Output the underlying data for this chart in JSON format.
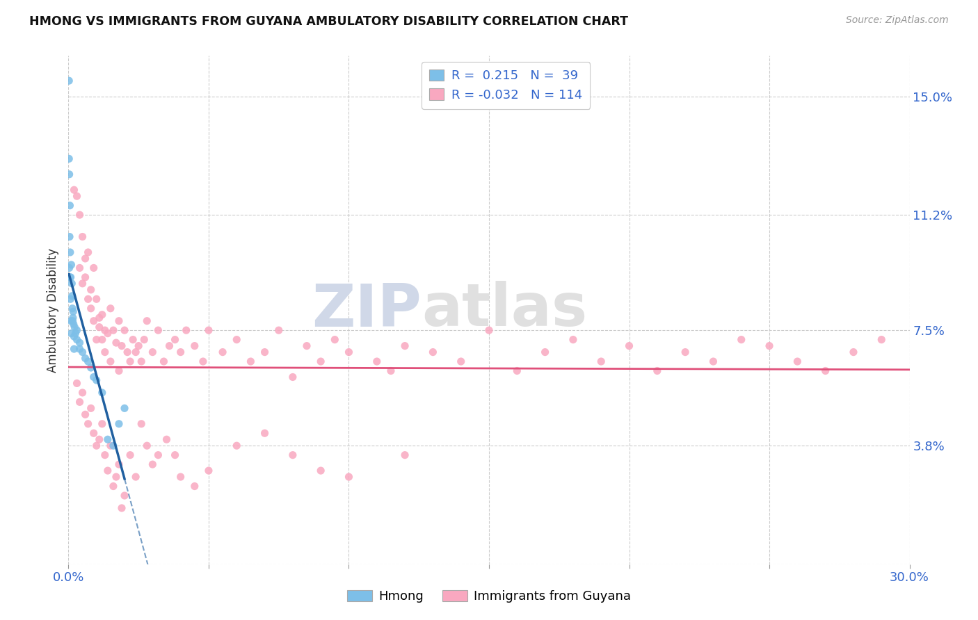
{
  "title": "HMONG VS IMMIGRANTS FROM GUYANA AMBULATORY DISABILITY CORRELATION CHART",
  "source": "Source: ZipAtlas.com",
  "ylabel": "Ambulatory Disability",
  "ytick_vals": [
    0.0,
    0.038,
    0.075,
    0.112,
    0.15
  ],
  "ytick_labels": [
    "",
    "3.8%",
    "7.5%",
    "11.2%",
    "15.0%"
  ],
  "xtick_vals": [
    0.0,
    0.05,
    0.1,
    0.15,
    0.2,
    0.25,
    0.3
  ],
  "xtick_labels": [
    "0.0%",
    "",
    "",
    "",
    "",
    "",
    "30.0%"
  ],
  "xlim": [
    0.0,
    0.3
  ],
  "ylim": [
    0.0,
    0.163
  ],
  "r_hmong": 0.215,
  "n_hmong": 39,
  "r_guyana": -0.032,
  "n_guyana": 114,
  "color_hmong": "#7dbfe8",
  "color_guyana": "#f9a8c0",
  "color_trend_hmong": "#2060a0",
  "color_trend_guyana": "#e0507a",
  "watermark_color": "#e8e8e8",
  "hmong_x": [
    0.0002,
    0.0002,
    0.0003,
    0.0003,
    0.0004,
    0.0005,
    0.0005,
    0.0006,
    0.0007,
    0.0008,
    0.0009,
    0.001,
    0.001,
    0.0012,
    0.0013,
    0.0014,
    0.0015,
    0.0016,
    0.0017,
    0.0018,
    0.002,
    0.002,
    0.0022,
    0.0025,
    0.003,
    0.003,
    0.004,
    0.004,
    0.005,
    0.006,
    0.007,
    0.008,
    0.009,
    0.01,
    0.012,
    0.014,
    0.016,
    0.018,
    0.02
  ],
  "hmong_y": [
    0.155,
    0.13,
    0.125,
    0.095,
    0.105,
    0.092,
    0.115,
    0.1,
    0.085,
    0.092,
    0.078,
    0.096,
    0.074,
    0.09,
    0.086,
    0.082,
    0.078,
    0.079,
    0.081,
    0.077,
    0.073,
    0.069,
    0.076,
    0.074,
    0.075,
    0.072,
    0.069,
    0.071,
    0.068,
    0.066,
    0.065,
    0.063,
    0.06,
    0.059,
    0.055,
    0.04,
    0.038,
    0.045,
    0.05
  ],
  "guyana_x": [
    0.002,
    0.003,
    0.004,
    0.004,
    0.005,
    0.005,
    0.006,
    0.006,
    0.007,
    0.007,
    0.008,
    0.008,
    0.009,
    0.009,
    0.01,
    0.01,
    0.011,
    0.011,
    0.012,
    0.012,
    0.013,
    0.013,
    0.014,
    0.015,
    0.015,
    0.016,
    0.017,
    0.018,
    0.018,
    0.019,
    0.02,
    0.021,
    0.022,
    0.023,
    0.024,
    0.025,
    0.026,
    0.027,
    0.028,
    0.03,
    0.032,
    0.034,
    0.036,
    0.038,
    0.04,
    0.042,
    0.045,
    0.048,
    0.05,
    0.055,
    0.06,
    0.065,
    0.07,
    0.075,
    0.08,
    0.085,
    0.09,
    0.095,
    0.1,
    0.11,
    0.115,
    0.12,
    0.13,
    0.14,
    0.15,
    0.16,
    0.17,
    0.18,
    0.19,
    0.2,
    0.21,
    0.22,
    0.23,
    0.24,
    0.25,
    0.26,
    0.27,
    0.28,
    0.29,
    0.003,
    0.004,
    0.005,
    0.006,
    0.007,
    0.008,
    0.009,
    0.01,
    0.011,
    0.012,
    0.013,
    0.014,
    0.015,
    0.016,
    0.017,
    0.018,
    0.019,
    0.02,
    0.022,
    0.024,
    0.026,
    0.028,
    0.03,
    0.032,
    0.035,
    0.038,
    0.04,
    0.045,
    0.05,
    0.06,
    0.07,
    0.08,
    0.09,
    0.1,
    0.12
  ],
  "guyana_y": [
    0.12,
    0.118,
    0.112,
    0.095,
    0.105,
    0.09,
    0.092,
    0.098,
    0.085,
    0.1,
    0.088,
    0.082,
    0.095,
    0.078,
    0.085,
    0.072,
    0.079,
    0.076,
    0.08,
    0.072,
    0.075,
    0.068,
    0.074,
    0.082,
    0.065,
    0.075,
    0.071,
    0.078,
    0.062,
    0.07,
    0.075,
    0.068,
    0.065,
    0.072,
    0.068,
    0.07,
    0.065,
    0.072,
    0.078,
    0.068,
    0.075,
    0.065,
    0.07,
    0.072,
    0.068,
    0.075,
    0.07,
    0.065,
    0.075,
    0.068,
    0.072,
    0.065,
    0.068,
    0.075,
    0.06,
    0.07,
    0.065,
    0.072,
    0.068,
    0.065,
    0.062,
    0.07,
    0.068,
    0.065,
    0.075,
    0.062,
    0.068,
    0.072,
    0.065,
    0.07,
    0.062,
    0.068,
    0.065,
    0.072,
    0.07,
    0.065,
    0.062,
    0.068,
    0.072,
    0.058,
    0.052,
    0.055,
    0.048,
    0.045,
    0.05,
    0.042,
    0.038,
    0.04,
    0.045,
    0.035,
    0.03,
    0.038,
    0.025,
    0.028,
    0.032,
    0.018,
    0.022,
    0.035,
    0.028,
    0.045,
    0.038,
    0.032,
    0.035,
    0.04,
    0.035,
    0.028,
    0.025,
    0.03,
    0.038,
    0.042,
    0.035,
    0.03,
    0.028,
    0.035
  ]
}
